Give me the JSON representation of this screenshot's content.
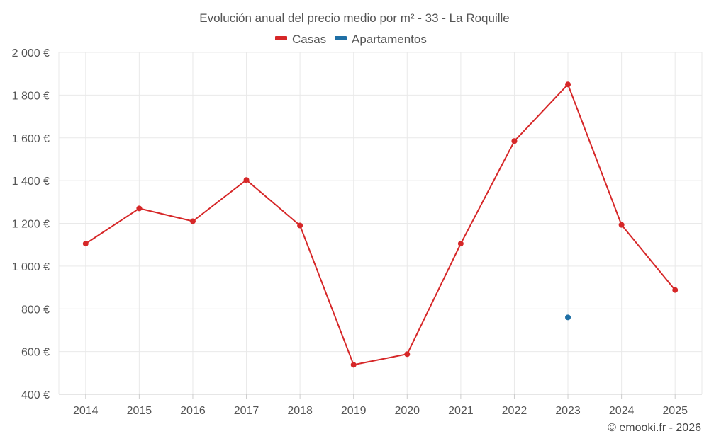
{
  "chart_data": {
    "type": "line",
    "title": "Evolución anual del precio medio por m² - 33 - La Roquille",
    "categories": [
      "2014",
      "2015",
      "2016",
      "2017",
      "2018",
      "2019",
      "2020",
      "2021",
      "2022",
      "2023",
      "2024",
      "2025"
    ],
    "series": [
      {
        "name": "Casas",
        "color": "#d62728",
        "values": [
          1105,
          1270,
          1210,
          1403,
          1190,
          538,
          588,
          1105,
          1585,
          1850,
          1193,
          888
        ]
      },
      {
        "name": "Apartamentos",
        "color": "#1f6fa5",
        "values": [
          null,
          null,
          null,
          null,
          null,
          null,
          null,
          null,
          null,
          760,
          null,
          null
        ]
      }
    ],
    "ylim": [
      400,
      2000
    ],
    "yticks": [
      400,
      600,
      800,
      1000,
      1200,
      1400,
      1600,
      1800,
      2000
    ],
    "ytick_labels": [
      "400 €",
      "600 €",
      "800 €",
      "1 000 €",
      "1 200 €",
      "1 400 €",
      "1 600 €",
      "1 800 €",
      "2 000 €"
    ],
    "grid": true,
    "legend": "top-center",
    "xlabel": "",
    "ylabel": ""
  },
  "credit": "© emooki.fr - 2026"
}
